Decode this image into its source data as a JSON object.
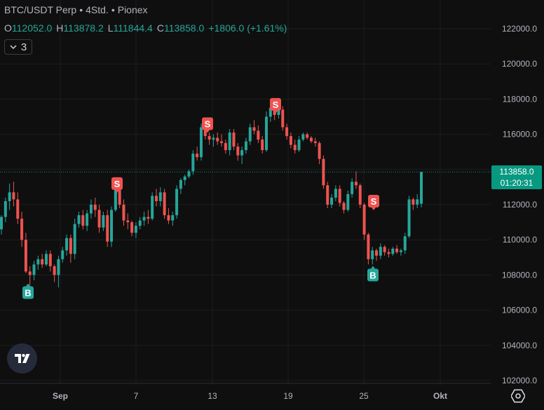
{
  "header": {
    "symbol": "BTC/USDT Perp",
    "interval": "4Std.",
    "exchange": "Pionex",
    "separator": "•"
  },
  "ohlc": {
    "o_label": "O",
    "open": "112052.0",
    "h_label": "H",
    "high": "113878.2",
    "l_label": "L",
    "low": "111844.4",
    "c_label": "C",
    "close": "113858.0",
    "change": "+1806.0 (+1.61%)"
  },
  "indicator_toggle": {
    "count": "3",
    "icon": "chevron-down-icon"
  },
  "price_label": {
    "price": "113858.0",
    "countdown": "01:20:31"
  },
  "colors": {
    "up": "#26a69a",
    "down": "#ef5350",
    "background": "#0f0f0f",
    "grid": "#1e1e1e",
    "tag": "#089981"
  },
  "chart_data": {
    "type": "candlestick",
    "y_axis_labels": [
      "122000.0",
      "120000.0",
      "118000.0",
      "116000.0",
      "114000.0",
      "112000.0",
      "110000.0",
      "108000.0",
      "106000.0",
      "104000.0",
      "102000.0"
    ],
    "ylim": [
      101900,
      123000
    ],
    "x_axis_labels": [
      "Sep",
      "7",
      "13",
      "19",
      "25",
      "Okt"
    ],
    "current_price": 113858.0,
    "signals": [
      {
        "type": "B",
        "price": 107000
      },
      {
        "type": "S",
        "price": 113200
      },
      {
        "type": "S",
        "price": 116600
      },
      {
        "type": "S",
        "price": 117700
      },
      {
        "type": "S",
        "price": 112200
      },
      {
        "type": "B",
        "price": 108000
      }
    ],
    "candles": [
      [
        110600,
        111400,
        110300,
        111300
      ],
      [
        111300,
        112400,
        111000,
        112200
      ],
      [
        112200,
        113200,
        111700,
        112700
      ],
      [
        112700,
        113300,
        111900,
        112300
      ],
      [
        112300,
        112700,
        110900,
        111200
      ],
      [
        111200,
        111600,
        109600,
        110000
      ],
      [
        110000,
        110400,
        108100,
        108200
      ],
      [
        108200,
        108500,
        107400,
        108000
      ],
      [
        108000,
        108800,
        107700,
        108600
      ],
      [
        108600,
        109100,
        108300,
        108900
      ],
      [
        108900,
        109200,
        108400,
        108600
      ],
      [
        108600,
        109400,
        108500,
        109200
      ],
      [
        109200,
        109400,
        108200,
        108500
      ],
      [
        108500,
        108600,
        107600,
        108000
      ],
      [
        108000,
        109100,
        107300,
        108900
      ],
      [
        108900,
        109600,
        108700,
        109400
      ],
      [
        109400,
        110300,
        109100,
        110100
      ],
      [
        110100,
        110300,
        108700,
        109200
      ],
      [
        109200,
        111200,
        108900,
        110900
      ],
      [
        110900,
        111600,
        110700,
        111400
      ],
      [
        111400,
        111700,
        110600,
        110800
      ],
      [
        110800,
        111700,
        110500,
        111500
      ],
      [
        111500,
        112300,
        111200,
        112000
      ],
      [
        112000,
        112400,
        111300,
        111700
      ],
      [
        111700,
        112000,
        110400,
        110700
      ],
      [
        110700,
        111600,
        110500,
        111400
      ],
      [
        111400,
        111700,
        109600,
        109900
      ],
      [
        109900,
        111900,
        109600,
        111700
      ],
      [
        111700,
        113300,
        111600,
        113000
      ],
      [
        113000,
        113100,
        111800,
        112000
      ],
      [
        112000,
        112300,
        110800,
        111100
      ],
      [
        111100,
        111500,
        110600,
        111000
      ],
      [
        111000,
        111100,
        110200,
        110400
      ],
      [
        110400,
        111000,
        110100,
        110800
      ],
      [
        110800,
        111300,
        110600,
        111100
      ],
      [
        111100,
        111600,
        110800,
        111300
      ],
      [
        111300,
        111700,
        110900,
        111200
      ],
      [
        111200,
        112700,
        111100,
        112500
      ],
      [
        112500,
        112900,
        111900,
        112200
      ],
      [
        112200,
        113000,
        111900,
        112700
      ],
      [
        112700,
        112900,
        111200,
        111400
      ],
      [
        111400,
        111800,
        110900,
        111100
      ],
      [
        111100,
        111600,
        110800,
        111400
      ],
      [
        111400,
        113100,
        111200,
        112900
      ],
      [
        112900,
        113500,
        112600,
        113400
      ],
      [
        113400,
        113700,
        113100,
        113600
      ],
      [
        113600,
        114000,
        113500,
        113900
      ],
      [
        113900,
        115100,
        113700,
        114900
      ],
      [
        114900,
        115300,
        114500,
        114700
      ],
      [
        114700,
        116600,
        114500,
        116400
      ],
      [
        116400,
        116500,
        115700,
        115900
      ],
      [
        115900,
        116100,
        115400,
        115700
      ],
      [
        115700,
        116000,
        115300,
        115800
      ],
      [
        115800,
        116100,
        115400,
        115600
      ],
      [
        115600,
        116000,
        115300,
        115500
      ],
      [
        115500,
        115700,
        114900,
        115100
      ],
      [
        115100,
        116300,
        114800,
        116100
      ],
      [
        116100,
        116300,
        115100,
        115300
      ],
      [
        115300,
        115500,
        114500,
        114800
      ],
      [
        114800,
        115300,
        114300,
        115100
      ],
      [
        115100,
        115800,
        114900,
        115600
      ],
      [
        115600,
        116600,
        115400,
        116400
      ],
      [
        116400,
        116800,
        116000,
        116200
      ],
      [
        116200,
        116500,
        115500,
        115700
      ],
      [
        115700,
        115900,
        114900,
        115100
      ],
      [
        115100,
        117300,
        115000,
        117000
      ],
      [
        117000,
        117900,
        116700,
        117500
      ],
      [
        117500,
        117800,
        116800,
        117100
      ],
      [
        117100,
        117600,
        116900,
        117400
      ],
      [
        117400,
        117600,
        116200,
        116400
      ],
      [
        116400,
        116600,
        115700,
        115900
      ],
      [
        115900,
        116100,
        115200,
        115400
      ],
      [
        115400,
        115700,
        114900,
        115100
      ],
      [
        115100,
        115900,
        115000,
        115700
      ],
      [
        115700,
        116100,
        115600,
        116000
      ],
      [
        116000,
        116100,
        115700,
        115800
      ],
      [
        115800,
        115900,
        115500,
        115600
      ],
      [
        115600,
        115800,
        115300,
        115500
      ],
      [
        115500,
        115600,
        114300,
        114600
      ],
      [
        114600,
        114800,
        112900,
        113100
      ],
      [
        113100,
        113300,
        111800,
        112000
      ],
      [
        112000,
        112600,
        111800,
        112400
      ],
      [
        112400,
        113100,
        112200,
        112900
      ],
      [
        112900,
        113100,
        111900,
        112100
      ],
      [
        112100,
        112200,
        111500,
        111700
      ],
      [
        111700,
        112800,
        111600,
        112600
      ],
      [
        112600,
        113500,
        112400,
        113300
      ],
      [
        113300,
        113900,
        112900,
        113100
      ],
      [
        113100,
        113200,
        111800,
        112000
      ],
      [
        112000,
        112100,
        110000,
        110300
      ],
      [
        110300,
        110400,
        108600,
        108900
      ],
      [
        108900,
        109600,
        108600,
        109400
      ],
      [
        109400,
        109500,
        108800,
        109100
      ],
      [
        109100,
        109800,
        108900,
        109600
      ],
      [
        109600,
        109700,
        109100,
        109300
      ],
      [
        109300,
        109500,
        109000,
        109200
      ],
      [
        109200,
        109600,
        109100,
        109500
      ],
      [
        109500,
        109700,
        109200,
        109300
      ],
      [
        109300,
        109500,
        109100,
        109400
      ],
      [
        109400,
        110400,
        109200,
        110200
      ],
      [
        110200,
        112500,
        110100,
        112300
      ],
      [
        112300,
        112400,
        111700,
        112000
      ],
      [
        112000,
        112600,
        111800,
        112300
      ],
      [
        112052,
        113878.2,
        111844.4,
        113858.0
      ]
    ]
  }
}
